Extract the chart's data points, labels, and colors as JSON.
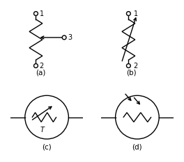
{
  "bg_color": "#ffffff",
  "fg_color": "#000000",
  "label_a": "(a)",
  "label_b": "(b)",
  "label_c": "(c)",
  "label_d": "(d)",
  "label_fontsize": 7.5,
  "num_fontsize": 7,
  "lw": 1.0
}
